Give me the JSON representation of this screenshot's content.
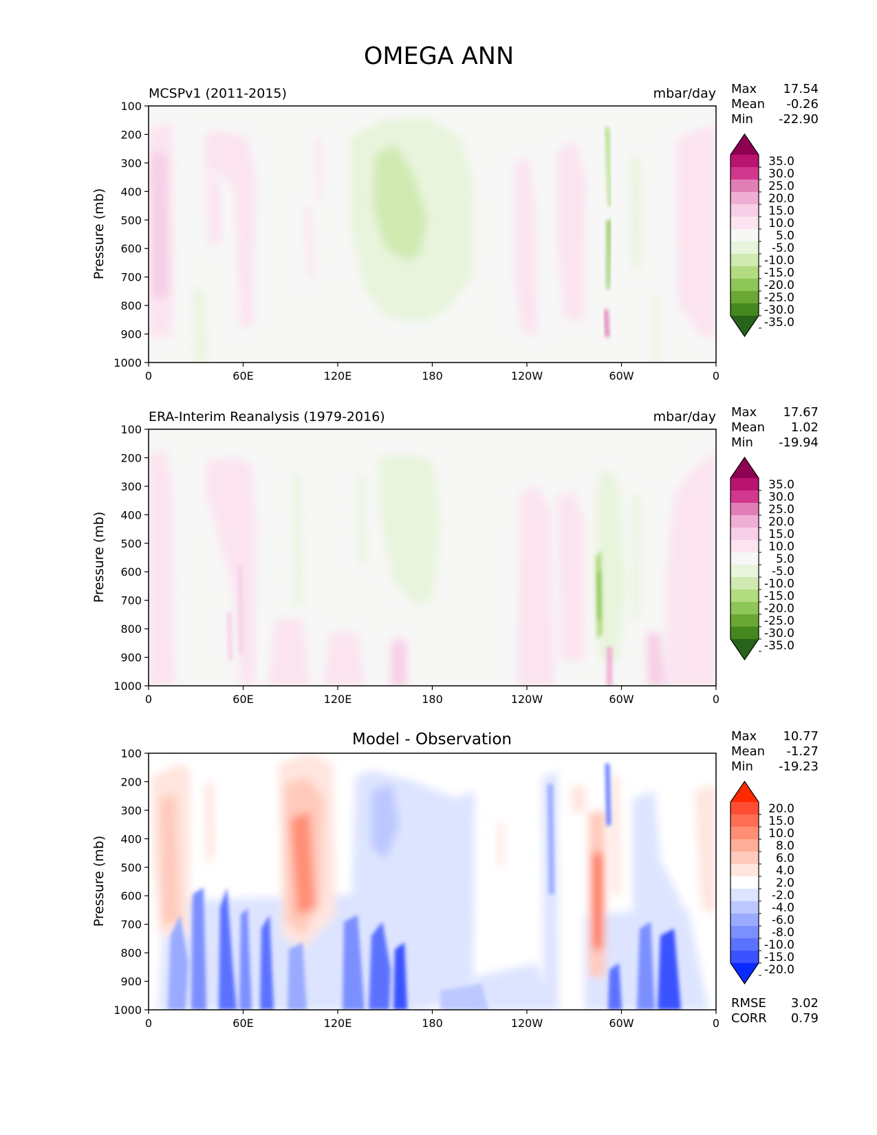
{
  "figure": {
    "title": "OMEGA ANN"
  },
  "chart_data": [
    {
      "type": "heatmap",
      "title": "MCSPv1 (2011-2015)",
      "units": "mbar/day",
      "ylabel": "Pressure (mb)",
      "yticks": [
        "100",
        "200",
        "300",
        "400",
        "500",
        "600",
        "700",
        "800",
        "900",
        "1000"
      ],
      "xticks": [
        "0",
        "60E",
        "120E",
        "180",
        "120W",
        "60W",
        "0"
      ],
      "ylim": [
        1000,
        100
      ],
      "stats": {
        "max_label": "Max",
        "max": "17.54",
        "mean_label": "Mean",
        "mean": "-0.26",
        "min_label": "Min",
        "min": "-22.90"
      },
      "colorbar": {
        "labels": [
          "35.0",
          "30.0",
          "25.0",
          "20.0",
          "15.0",
          "10.0",
          "5.0",
          "-5.0",
          "-10.0",
          "-15.0",
          "-20.0",
          "-25.0",
          "-30.0",
          "-35.0"
        ],
        "colors": [
          "#8e0152",
          "#b8136f",
          "#d0388e",
          "#e17eb5",
          "#efaed4",
          "#f7cfe6",
          "#fbe4f0",
          "#f7f7f6",
          "#e8f4dc",
          "#d0eab2",
          "#b3dc81",
          "#8fc658",
          "#6aa733",
          "#458820",
          "#276419"
        ]
      },
      "field_description": [
        {
          "lon": 5,
          "p_top": 180,
          "p_bot": 960,
          "value": 8
        },
        {
          "lon": 48,
          "p_top": 180,
          "p_bot": 800,
          "value": 6
        },
        {
          "lon": 172,
          "p_top": 160,
          "p_bot": 880,
          "value": -8
        },
        {
          "lon": 162,
          "p_top": 250,
          "p_bot": 600,
          "value": -12
        },
        {
          "lon": 240,
          "p_top": 290,
          "p_bot": 880,
          "value": 5
        },
        {
          "lon": 280,
          "p_top": 180,
          "p_bot": 820,
          "value": 5
        },
        {
          "lon": 335,
          "p_top": 180,
          "p_bot": 920,
          "value": 6
        }
      ]
    },
    {
      "type": "heatmap",
      "title": "ERA-Interim Reanalysis (1979-2016)",
      "units": "mbar/day",
      "ylabel": "Pressure (mb)",
      "yticks": [
        "100",
        "200",
        "300",
        "400",
        "500",
        "600",
        "700",
        "800",
        "900",
        "1000"
      ],
      "xticks": [
        "0",
        "60E",
        "120E",
        "180",
        "120W",
        "60W",
        "0"
      ],
      "ylim": [
        1000,
        100
      ],
      "stats": {
        "max_label": "Max",
        "max": "17.67",
        "mean_label": "Mean",
        "mean": "1.02",
        "min_label": "Min",
        "min": "-19.94"
      },
      "colorbar": {
        "labels": [
          "35.0",
          "30.0",
          "25.0",
          "20.0",
          "15.0",
          "10.0",
          "5.0",
          "-5.0",
          "-10.0",
          "-15.0",
          "-20.0",
          "-25.0",
          "-30.0",
          "-35.0"
        ],
        "colors": [
          "#8e0152",
          "#b8136f",
          "#d0388e",
          "#e17eb5",
          "#efaed4",
          "#f7cfe6",
          "#fbe4f0",
          "#f7f7f6",
          "#e8f4dc",
          "#d0eab2",
          "#b3dc81",
          "#8fc658",
          "#6aa733",
          "#458820",
          "#276419"
        ]
      },
      "field_description": [
        {
          "lon": 6,
          "p_top": 180,
          "p_bot": 1000,
          "value": 6
        },
        {
          "lon": 48,
          "p_top": 200,
          "p_bot": 1000,
          "value": 6
        },
        {
          "lon": 165,
          "p_top": 200,
          "p_bot": 800,
          "value": -8
        },
        {
          "lon": 250,
          "p_top": 260,
          "p_bot": 1000,
          "value": 5
        },
        {
          "lon": 295,
          "p_top": 160,
          "p_bot": 1000,
          "value": -6
        },
        {
          "lon": 338,
          "p_top": 190,
          "p_bot": 1000,
          "value": 6
        }
      ]
    },
    {
      "type": "heatmap",
      "title": "Model - Observation",
      "ylabel": "Pressure (mb)",
      "yticks": [
        "100",
        "200",
        "300",
        "400",
        "500",
        "600",
        "700",
        "800",
        "900",
        "1000"
      ],
      "xticks": [
        "0",
        "60E",
        "120E",
        "180",
        "120W",
        "60W",
        "0"
      ],
      "ylim": [
        1000,
        100
      ],
      "stats": {
        "max_label": "Max",
        "max": "10.77",
        "mean_label": "Mean",
        "mean": "-1.27",
        "min_label": "Min",
        "min": "-19.23",
        "rmse_label": "RMSE",
        "rmse": "3.02",
        "corr_label": "CORR",
        "corr": "0.79"
      },
      "colorbar": {
        "labels": [
          "20.0",
          "15.0",
          "10.0",
          "8.0",
          "6.0",
          "4.0",
          "2.0",
          "-2.0",
          "-4.0",
          "-6.0",
          "-8.0",
          "-10.0",
          "-15.0",
          "-20.0"
        ],
        "colors": [
          "#ff2a00",
          "#ff4d33",
          "#ff6e52",
          "#ff8e75",
          "#ffad99",
          "#ffcabb",
          "#ffe5de",
          "#ffffff",
          "#dde4ff",
          "#bcc8ff",
          "#9aabff",
          "#7b8fff",
          "#5b72ff",
          "#3a52ff",
          "#0a2bff"
        ]
      },
      "field_description": [
        {
          "lon": 14,
          "p_top": 140,
          "p_bot": 800,
          "value": 4
        },
        {
          "lon": 100,
          "p_top": 120,
          "p_bot": 820,
          "value": 6
        },
        {
          "lon": 170,
          "p_top": 160,
          "p_bot": 1000,
          "value": -3
        },
        {
          "lon": 285,
          "p_top": 300,
          "p_bot": 900,
          "value": 6
        },
        {
          "lon": 320,
          "p_top": 230,
          "p_bot": 1000,
          "value": -4
        },
        {
          "lon": 60,
          "p_top": 700,
          "p_bot": 1000,
          "value": -8
        },
        {
          "lon": 160,
          "p_top": 780,
          "p_bot": 1000,
          "value": -10
        }
      ]
    }
  ]
}
